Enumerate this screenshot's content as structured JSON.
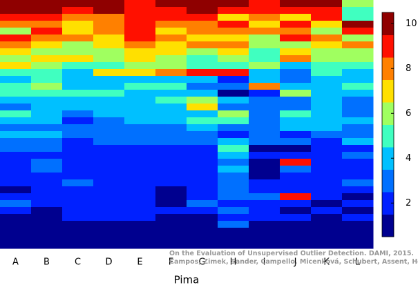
{
  "chart_data": {
    "type": "heatmap",
    "xlabel": "Pima",
    "categories": [
      "A",
      "B",
      "C",
      "D",
      "E",
      "F",
      "G",
      "H",
      "I",
      "J",
      "K",
      "L"
    ],
    "values": [
      [
        10,
        10,
        10,
        10,
        9,
        10,
        10,
        10,
        9,
        10,
        10,
        6
      ],
      [
        10,
        10,
        9,
        10,
        9,
        9,
        10,
        9,
        9,
        9,
        9,
        5
      ],
      [
        9,
        9,
        8,
        8,
        9,
        9,
        9,
        7,
        8,
        7,
        9,
        5
      ],
      [
        8,
        8,
        7,
        8,
        9,
        8,
        8,
        9,
        7,
        9,
        7,
        10
      ],
      [
        6,
        9,
        7,
        8,
        9,
        7,
        8,
        8,
        8,
        8,
        6,
        9
      ],
      [
        9,
        8,
        8,
        7,
        9,
        8,
        7,
        7,
        6,
        9,
        8,
        6
      ],
      [
        8,
        7,
        6,
        7,
        8,
        7,
        8,
        8,
        6,
        6,
        7,
        8
      ],
      [
        7,
        6,
        6,
        6,
        7,
        7,
        6,
        7,
        5,
        7,
        6,
        6
      ],
      [
        6,
        7,
        7,
        6,
        7,
        6,
        5,
        6,
        5,
        8,
        6,
        6
      ],
      [
        7,
        6,
        5,
        5,
        6,
        6,
        5,
        5,
        6,
        4,
        5,
        5
      ],
      [
        5,
        5,
        4,
        7,
        7,
        8,
        9,
        9,
        4,
        3,
        5,
        4
      ],
      [
        4,
        5,
        4,
        4,
        4,
        4,
        4,
        2,
        4,
        3,
        4,
        4
      ],
      [
        5,
        6,
        4,
        4,
        5,
        5,
        3,
        3,
        8,
        4,
        4,
        5
      ],
      [
        5,
        5,
        5,
        5,
        4,
        4,
        4,
        1,
        2,
        6,
        4,
        4
      ],
      [
        4,
        4,
        4,
        4,
        4,
        5,
        6,
        4,
        3,
        3,
        4,
        3
      ],
      [
        3,
        4,
        4,
        4,
        4,
        4,
        7,
        3,
        3,
        3,
        4,
        3
      ],
      [
        5,
        4,
        3,
        4,
        4,
        4,
        4,
        6,
        3,
        5,
        4,
        3
      ],
      [
        4,
        4,
        2,
        3,
        4,
        4,
        5,
        5,
        3,
        4,
        4,
        4
      ],
      [
        3,
        3,
        3,
        3,
        3,
        3,
        4,
        3,
        3,
        4,
        4,
        3
      ],
      [
        4,
        4,
        3,
        3,
        3,
        3,
        3,
        2,
        3,
        2,
        3,
        3
      ],
      [
        3,
        3,
        2,
        3,
        3,
        3,
        3,
        4,
        3,
        3,
        2,
        4
      ],
      [
        3,
        3,
        2,
        2,
        2,
        2,
        2,
        5,
        1,
        1,
        2,
        2
      ],
      [
        2,
        2,
        2,
        2,
        2,
        2,
        2,
        4,
        2,
        2,
        2,
        3
      ],
      [
        2,
        3,
        2,
        2,
        2,
        2,
        2,
        3,
        1,
        9,
        2,
        2
      ],
      [
        2,
        3,
        2,
        2,
        2,
        2,
        2,
        4,
        1,
        3,
        2,
        2
      ],
      [
        2,
        2,
        2,
        2,
        2,
        2,
        2,
        3,
        1,
        2,
        2,
        2
      ],
      [
        2,
        2,
        3,
        2,
        2,
        2,
        2,
        3,
        2,
        2,
        2,
        3
      ],
      [
        1,
        2,
        2,
        2,
        2,
        1,
        2,
        3,
        2,
        2,
        2,
        2
      ],
      [
        2,
        2,
        2,
        2,
        2,
        1,
        2,
        3,
        3,
        9,
        2,
        1
      ],
      [
        3,
        2,
        2,
        2,
        2,
        1,
        3,
        2,
        2,
        2,
        1,
        2
      ],
      [
        2,
        1,
        2,
        2,
        2,
        2,
        2,
        3,
        2,
        1,
        2,
        1
      ],
      [
        1,
        1,
        2,
        2,
        2,
        1,
        1,
        2,
        2,
        2,
        1,
        2
      ],
      [
        1,
        1,
        1,
        1,
        1,
        1,
        1,
        3,
        1,
        1,
        1,
        1
      ],
      [
        1,
        1,
        1,
        1,
        1,
        1,
        1,
        1,
        1,
        1,
        1,
        1
      ],
      [
        1,
        1,
        1,
        1,
        1,
        1,
        1,
        1,
        1,
        1,
        1,
        1
      ],
      [
        1,
        1,
        1,
        1,
        1,
        1,
        1,
        1,
        1,
        1,
        1,
        1
      ]
    ],
    "colors": [
      "#00008f",
      "#0020ff",
      "#0070ff",
      "#00c0ff",
      "#40ffc0",
      "#a0ff60",
      "#ffe000",
      "#ff8000",
      "#ff1000",
      "#8f0000"
    ],
    "clim": [
      0.5,
      10.5
    ],
    "cticks": [
      2,
      4,
      6,
      8,
      10
    ],
    "annotations": [
      "On the Evaluation of Unsupervised Outlier Detection. DAMI, 2015.",
      "Campos, Zimek, Sander, Campello, Micenková, Schubert, Assent, Houle"
    ]
  }
}
